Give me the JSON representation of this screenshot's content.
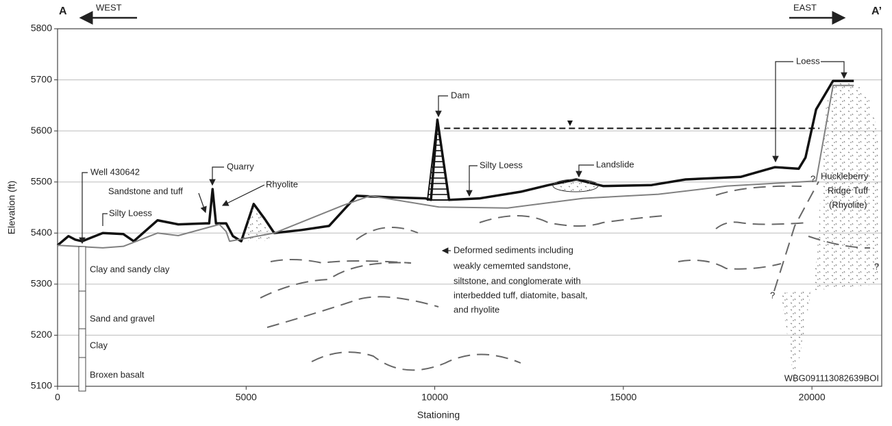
{
  "chart_data": {
    "type": "cross-section",
    "xlabel": "Stationing",
    "ylabel": "Elevation (ft)",
    "xlim": [
      0,
      21850
    ],
    "ylim": [
      5100,
      5800
    ],
    "xticks": [
      0,
      5000,
      10000,
      15000,
      20000
    ],
    "yticks": [
      5100,
      5200,
      5300,
      5400,
      5500,
      5600,
      5700,
      5800
    ],
    "grid": true,
    "series": [
      {
        "color": "#111111",
        "width": 3.5,
        "dashed": false,
        "x": [
          0,
          290,
          470,
          650,
          1200,
          1745,
          2020,
          2650,
          3200,
          3930,
          4020,
          4110,
          4200,
          4470,
          4650,
          4870,
          5200,
          5470,
          5745,
          6470,
          7200,
          7930,
          8840,
          9745,
          9900,
          10070,
          10380,
          11200,
          12290,
          13020,
          13750,
          14470,
          15750,
          16650,
          18110,
          19020,
          19650,
          19830,
          20110,
          20560,
          21110
        ],
        "values": [
          5376,
          5394,
          5387,
          5384,
          5400,
          5398,
          5384,
          5425,
          5417,
          5419,
          5419,
          5486,
          5419,
          5419,
          5394,
          5384,
          5457,
          5430,
          5400,
          5406,
          5414,
          5473,
          5470,
          5468,
          5465,
          5622,
          5465,
          5468,
          5481,
          5494,
          5505,
          5492,
          5494,
          5505,
          5510,
          5529,
          5526,
          5548,
          5642,
          5698,
          5698
        ]
      },
      {
        "color": "#808080",
        "width": 2,
        "dashed": false,
        "x": [
          0,
          1200,
          1745,
          2650,
          3200,
          4290,
          4470,
          4560,
          5745,
          7560,
          8290,
          10110,
          11930,
          13930,
          15930,
          17750,
          20110,
          20560,
          21110
        ],
        "values": [
          5376,
          5371,
          5374,
          5400,
          5395,
          5417,
          5403,
          5384,
          5400,
          5454,
          5473,
          5451,
          5449,
          5468,
          5476,
          5492,
          5502,
          5689,
          5689
        ]
      },
      {
        "color": "#111111",
        "width": 2,
        "dashed": true,
        "x": [
          10250,
          20200
        ],
        "values": [
          5605,
          5605
        ]
      }
    ]
  },
  "labels": {
    "section_start": "A",
    "section_end": "A’",
    "west": "WEST",
    "east": "EAST",
    "well": "Well 430642",
    "sandstone": "Sandstone and tuff",
    "quarry": "Quarry",
    "rhyolite": "Rhyolite",
    "silty_loess": "Silty Loess",
    "dam": "Dam",
    "landslide": "Landslide",
    "loess": "Loess",
    "tuff": [
      "Huckleberry",
      "Ridge Tuff",
      "(Rhyolite)"
    ],
    "deformed": [
      "Deformed sediments including",
      "weakly cememted sandstone,",
      "siltstone, and conglomerate with",
      "interbedded tuff, diatomite, basalt,",
      "and rhyolite"
    ],
    "well_log": [
      "Clay and sandy clay",
      "Sand and gravel",
      "Clay",
      "Broxen basalt"
    ],
    "query": "?",
    "figure_id": "WBG091113082639BOI"
  }
}
